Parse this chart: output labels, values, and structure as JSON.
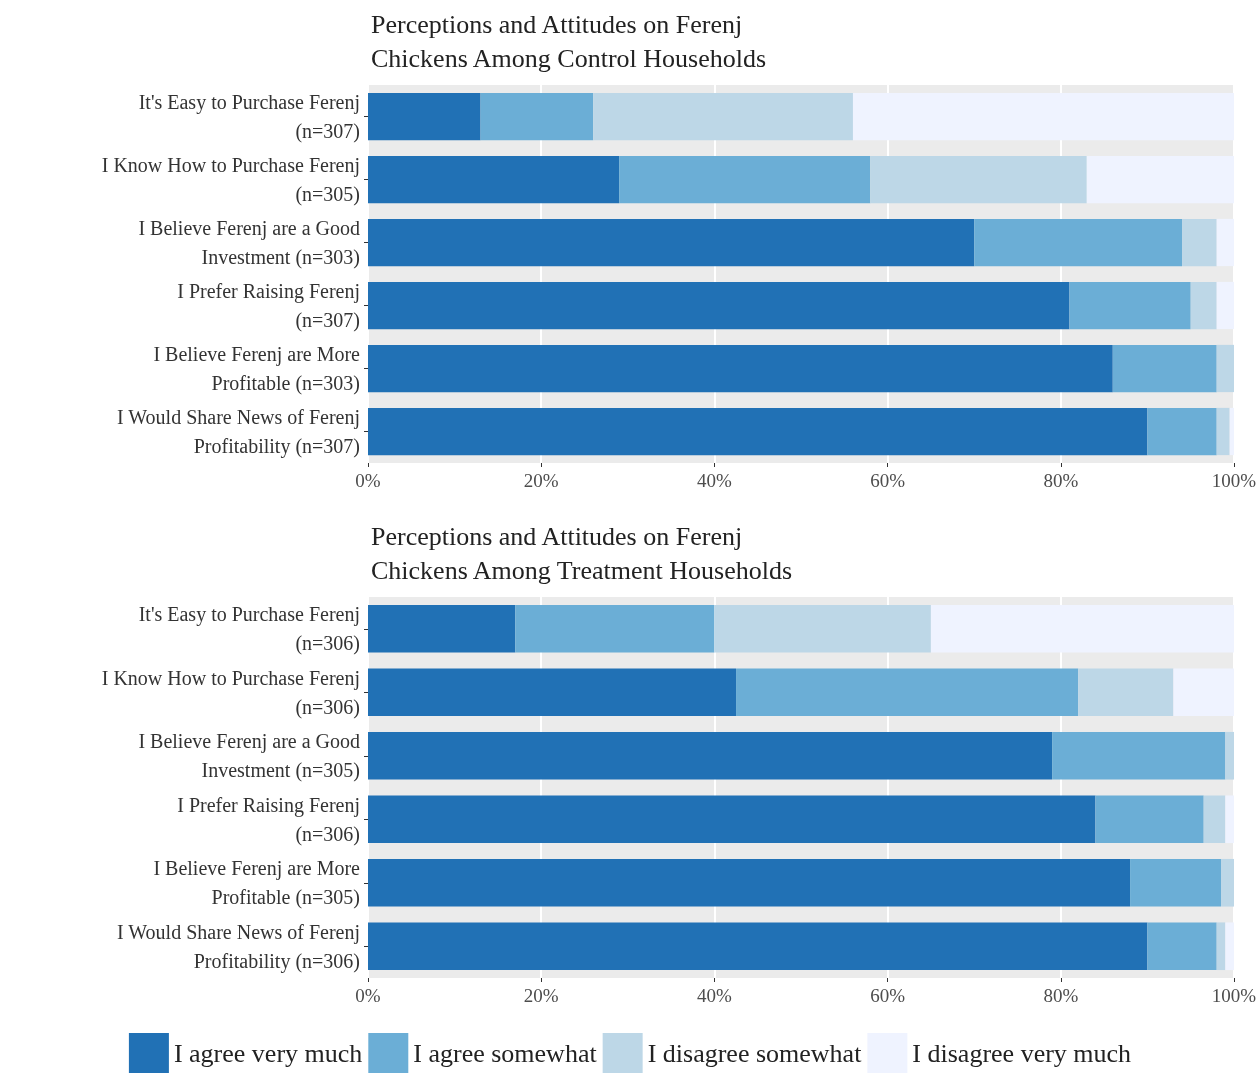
{
  "chart_data": [
    {
      "type": "bar",
      "orientation": "horizontal",
      "stacked": true,
      "title": "Perceptions and Attitudes on Ferenj\nChickens Among Control Households",
      "categories": [
        "It's Easy to Purchase Ferenj\n(n=307)",
        "I Know How to Purchase Ferenj\n(n=305)",
        "I Believe Ferenj are a Good\nInvestment (n=303)",
        "I Prefer Raising Ferenj\n(n=307)",
        "I Believe Ferenj are More\nProfitable (n=303)",
        "I Would Share News of Ferenj\nProfitability (n=307)"
      ],
      "series": [
        {
          "color": "#2171b5",
          "values": [
            13,
            29,
            70,
            81,
            86,
            90
          ]
        },
        {
          "color": "#6baed6",
          "values": [
            13,
            29,
            24,
            14,
            12,
            8
          ]
        },
        {
          "color": "#bdd7e7",
          "values": [
            30,
            25,
            4,
            3,
            2,
            1.5
          ]
        },
        {
          "color": "#eff3ff",
          "values": [
            44,
            17,
            2,
            2,
            0,
            0.5
          ]
        }
      ],
      "xlim": [
        0,
        100
      ],
      "xticks": [
        {
          "value": 0,
          "label": "0%"
        },
        {
          "value": 20,
          "label": "20%"
        },
        {
          "value": 40,
          "label": "40%"
        },
        {
          "value": 60,
          "label": "60%"
        },
        {
          "value": 80,
          "label": "80%"
        },
        {
          "value": 100,
          "label": "100%"
        }
      ],
      "grid": "x",
      "legend": false
    },
    {
      "type": "bar",
      "orientation": "horizontal",
      "stacked": true,
      "title": "Perceptions and Attitudes on Ferenj\nChickens Among Treatment Households",
      "categories": [
        "It's Easy to Purchase Ferenj\n(n=306)",
        "I Know How to Purchase Ferenj\n(n=306)",
        "I Believe Ferenj are a Good\nInvestment (n=305)",
        "I Prefer Raising Ferenj\n(n=306)",
        "I Believe Ferenj are More\nProfitable (n=305)",
        "I Would Share News of Ferenj\nProfitability (n=306)"
      ],
      "series": [
        {
          "name": "I agree very much",
          "color": "#2171b5",
          "values": [
            17,
            42.5,
            79,
            84,
            88,
            90
          ]
        },
        {
          "name": "I agree somewhat",
          "color": "#6baed6",
          "values": [
            23,
            39.5,
            20,
            12.5,
            10.5,
            8
          ]
        },
        {
          "name": "I disagree somewhat",
          "color": "#bdd7e7",
          "values": [
            25,
            11,
            1,
            2.5,
            1.5,
            1
          ]
        },
        {
          "name": "I disagree very much",
          "color": "#eff3ff",
          "values": [
            35,
            7,
            0,
            1,
            0,
            1
          ]
        }
      ],
      "xlim": [
        0,
        100
      ],
      "xticks": [
        {
          "value": 0,
          "label": "0%"
        },
        {
          "value": 20,
          "label": "20%"
        },
        {
          "value": 40,
          "label": "40%"
        },
        {
          "value": 60,
          "label": "60%"
        },
        {
          "value": 80,
          "label": "80%"
        },
        {
          "value": 100,
          "label": "100%"
        }
      ],
      "grid": "x",
      "legend": "bottom"
    }
  ]
}
